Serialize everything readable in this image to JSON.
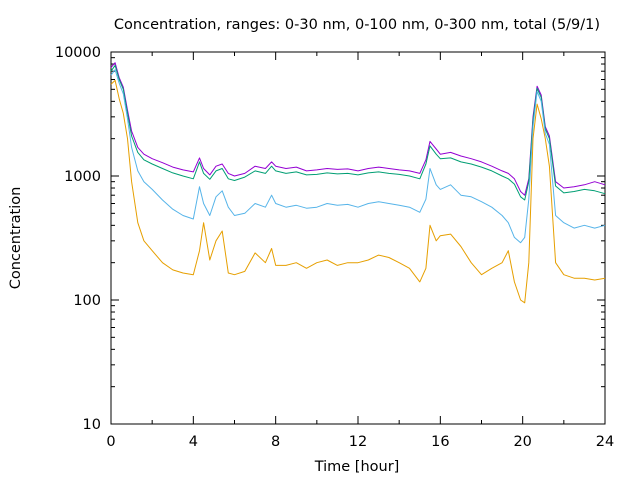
{
  "chart_data": {
    "type": "line",
    "title": "Concentration, ranges: 0-30 nm, 0-100 nm, 0-300 nm, total (5/9/1)",
    "xlabel": "Time [hour]",
    "ylabel": "Concentration",
    "xlim": [
      0,
      24
    ],
    "ylim": [
      10,
      10000
    ],
    "yscale": "log",
    "grid": false,
    "x_ticks": [
      0,
      4,
      8,
      12,
      16,
      20,
      24
    ],
    "x_tick_labels": [
      "0",
      "4",
      "8",
      "12",
      "16",
      "20",
      "24"
    ],
    "y_ticks": [
      10,
      100,
      1000,
      10000
    ],
    "y_tick_labels": [
      "10",
      "100",
      "1000",
      "10000"
    ],
    "x": [
      0,
      0.2,
      0.4,
      0.6,
      0.8,
      1.0,
      1.3,
      1.6,
      2.0,
      2.5,
      3.0,
      3.5,
      4.0,
      4.3,
      4.5,
      4.8,
      5.1,
      5.4,
      5.7,
      6.0,
      6.5,
      7.0,
      7.5,
      7.8,
      8.0,
      8.5,
      9.0,
      9.5,
      10.0,
      10.5,
      11.0,
      11.5,
      12.0,
      12.5,
      13.0,
      13.5,
      14.0,
      14.5,
      15.0,
      15.3,
      15.5,
      15.8,
      16.0,
      16.5,
      17.0,
      17.5,
      18.0,
      18.5,
      19.0,
      19.3,
      19.6,
      19.9,
      20.1,
      20.3,
      20.5,
      20.7,
      20.9,
      21.1,
      21.3,
      21.6,
      22.0,
      22.5,
      23.0,
      23.5,
      24.0
    ],
    "series": [
      {
        "color": "#9400d3",
        "values": [
          7500,
          8200,
          6200,
          5200,
          3400,
          2300,
          1700,
          1500,
          1380,
          1280,
          1180,
          1120,
          1080,
          1400,
          1150,
          1020,
          1200,
          1250,
          1050,
          1000,
          1050,
          1200,
          1150,
          1300,
          1200,
          1150,
          1180,
          1100,
          1120,
          1150,
          1130,
          1140,
          1100,
          1150,
          1180,
          1150,
          1120,
          1100,
          1050,
          1350,
          1900,
          1650,
          1500,
          1550,
          1450,
          1380,
          1300,
          1200,
          1100,
          1050,
          950,
          750,
          700,
          950,
          3000,
          5300,
          4500,
          2500,
          2100,
          900,
          800,
          820,
          850,
          900,
          850
        ]
      },
      {
        "color": "#009e73",
        "values": [
          7000,
          7800,
          6000,
          5000,
          3200,
          2100,
          1550,
          1350,
          1250,
          1150,
          1060,
          1000,
          950,
          1300,
          1050,
          940,
          1100,
          1150,
          950,
          920,
          980,
          1100,
          1050,
          1200,
          1100,
          1050,
          1080,
          1020,
          1030,
          1060,
          1040,
          1050,
          1020,
          1060,
          1080,
          1050,
          1030,
          1000,
          950,
          1250,
          1750,
          1500,
          1380,
          1400,
          1300,
          1250,
          1180,
          1100,
          1000,
          950,
          860,
          680,
          640,
          900,
          2800,
          5100,
          4300,
          2400,
          2000,
          830,
          730,
          750,
          780,
          760,
          720
        ]
      },
      {
        "color": "#56b4e9",
        "values": [
          6500,
          7200,
          5600,
          4600,
          2900,
          1700,
          1100,
          900,
          780,
          640,
          540,
          480,
          450,
          820,
          600,
          480,
          680,
          760,
          560,
          480,
          500,
          600,
          560,
          700,
          600,
          560,
          580,
          550,
          560,
          600,
          580,
          590,
          560,
          600,
          620,
          600,
          580,
          560,
          510,
          650,
          1150,
          850,
          780,
          850,
          700,
          680,
          620,
          560,
          480,
          420,
          320,
          290,
          320,
          650,
          2500,
          4800,
          4000,
          2200,
          1800,
          480,
          420,
          380,
          400,
          380,
          400
        ]
      },
      {
        "color": "#e69f00",
        "values": [
          5500,
          5900,
          4200,
          3200,
          2000,
          900,
          420,
          300,
          250,
          200,
          175,
          165,
          160,
          250,
          420,
          210,
          300,
          360,
          165,
          160,
          170,
          240,
          200,
          260,
          190,
          190,
          200,
          180,
          200,
          210,
          190,
          200,
          200,
          210,
          230,
          220,
          200,
          180,
          140,
          180,
          400,
          300,
          330,
          340,
          270,
          200,
          160,
          180,
          200,
          250,
          140,
          100,
          95,
          200,
          2000,
          3800,
          2900,
          2000,
          1200,
          200,
          160,
          150,
          150,
          145,
          150
        ]
      }
    ]
  }
}
